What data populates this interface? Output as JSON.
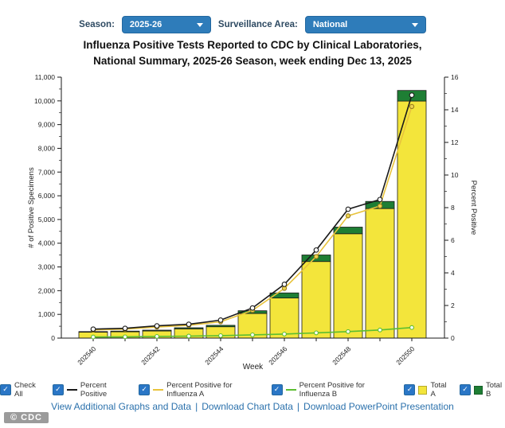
{
  "controls": {
    "season_label": "Season:",
    "season_value": "2025-26",
    "surveillance_label": "Surveillance Area:",
    "surveillance_value": "National"
  },
  "title": {
    "line1": "Influenza Positive Tests Reported to CDC by Clinical Laboratories,",
    "line2": "National Summary, 2025-26 Season, week ending Dec 13, 2025"
  },
  "chart_data": {
    "type": "bar",
    "subtype": "stacked-bar-with-lines",
    "title": "Influenza Positive Tests Reported to CDC by Clinical Laboratories, National Summary, 2025-26 Season, week ending Dec 13, 2025",
    "x": [
      "202540",
      "202541",
      "202542",
      "202543",
      "202544",
      "202545",
      "202546",
      "202547",
      "202548",
      "202549",
      "202550"
    ],
    "x_tick_labels": [
      "202540",
      "202542",
      "202544",
      "202546",
      "202548",
      "202550"
    ],
    "xlabel": "Week",
    "ylabel_left": "# of Positive Specimens",
    "ylabel_right": "Percent Positive",
    "ylim_left": [
      0,
      11000
    ],
    "ylim_right": [
      0,
      16
    ],
    "y_left_ticks": [
      "0",
      "1,000",
      "2,000",
      "3,000",
      "4,000",
      "5,000",
      "6,000",
      "7,000",
      "8,000",
      "9,000",
      "10,000",
      "11,000"
    ],
    "y_right_ticks": [
      "0",
      "2",
      "4",
      "6",
      "8",
      "10",
      "12",
      "14",
      "16"
    ],
    "grid": false,
    "legend_position": "bottom",
    "series": [
      {
        "name": "Total A",
        "type": "bar",
        "axis": "left",
        "color": "#f3e53b",
        "values": [
          250,
          265,
          300,
          390,
          480,
          1040,
          1690,
          3230,
          4400,
          5460,
          9990
        ]
      },
      {
        "name": "Total B",
        "type": "bar",
        "axis": "left",
        "color": "#1e7e34",
        "values": [
          25,
          30,
          35,
          45,
          60,
          115,
          215,
          275,
          280,
          300,
          450
        ]
      },
      {
        "name": "Percent Positive",
        "type": "line",
        "axis": "right",
        "color": "#1a1a1a",
        "values": [
          0.55,
          0.6,
          0.75,
          0.85,
          1.1,
          1.85,
          3.3,
          5.4,
          7.9,
          8.5,
          14.9
        ]
      },
      {
        "name": "Percent Positive for Influenza A",
        "type": "line",
        "axis": "right",
        "color": "#e8c33c",
        "values": [
          0.5,
          0.55,
          0.68,
          0.78,
          1.0,
          1.7,
          3.05,
          5.0,
          7.5,
          8.1,
          14.2
        ]
      },
      {
        "name": "Percent Positive for Influenza B",
        "type": "line",
        "axis": "right",
        "color": "#5cbe31",
        "values": [
          0.07,
          0.08,
          0.1,
          0.12,
          0.15,
          0.2,
          0.25,
          0.32,
          0.4,
          0.5,
          0.65
        ]
      }
    ]
  },
  "legend": {
    "items": [
      {
        "label": "Check All",
        "swatch": "none",
        "color": "",
        "checked": true
      },
      {
        "label": "Percent Positive",
        "swatch": "dash",
        "color": "#1a1a1a",
        "checked": true
      },
      {
        "label": "Percent Positive for Influenza A",
        "swatch": "dash",
        "color": "#e8c33c",
        "checked": true
      },
      {
        "label": "Percent Positive for Influenza B",
        "swatch": "dash",
        "color": "#5cbe31",
        "checked": true
      },
      {
        "label": "Total A",
        "swatch": "square",
        "color": "#f3e53b",
        "checked": true
      },
      {
        "label": "Total B",
        "swatch": "square",
        "color": "#1e7e34",
        "checked": true
      }
    ]
  },
  "links": {
    "separator": "|",
    "items": [
      {
        "label": "View Additional Graphs and Data"
      },
      {
        "label": "Download Chart Data"
      },
      {
        "label": "Download PowerPoint Presentation"
      }
    ]
  },
  "icons": {
    "checkbox_check": "✓"
  },
  "watermark": "© CDC",
  "colors": {
    "dropdown_bg": "#2e7cba",
    "checkbox_blue": "#2a76c6",
    "link_blue": "#2b71ac",
    "bar_a_yellow": "#f3e53b",
    "bar_b_green": "#1e7e34",
    "line_black": "#1a1a1a",
    "line_a_gold": "#e8c33c",
    "line_b_green": "#5cbe31"
  }
}
